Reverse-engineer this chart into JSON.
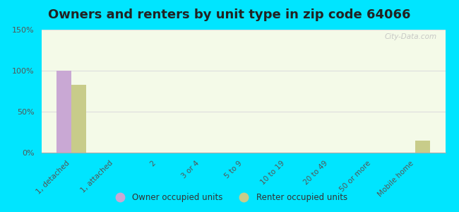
{
  "title": "Owners and renters by unit type in zip code 64066",
  "categories": [
    "1, detached",
    "1, attached",
    "2",
    "3 or 4",
    "5 to 9",
    "10 to 19",
    "20 to 49",
    "50 or more",
    "Mobile home"
  ],
  "owner_values": [
    100,
    0,
    0,
    0,
    0,
    0,
    0,
    0,
    0
  ],
  "renter_values": [
    83,
    0,
    0,
    0,
    0,
    0,
    0,
    0,
    15
  ],
  "owner_color": "#c9a8d4",
  "renter_color": "#c8cc8a",
  "background_outer": "#00e5ff",
  "background_plot": "#f4fae8",
  "ylim": [
    0,
    150
  ],
  "yticks": [
    0,
    50,
    100,
    150
  ],
  "ytick_labels": [
    "0%",
    "50%",
    "100%",
    "150%"
  ],
  "bar_width": 0.35,
  "title_fontsize": 13,
  "watermark": "City-Data.com",
  "legend_owner": "Owner occupied units",
  "legend_renter": "Renter occupied units"
}
